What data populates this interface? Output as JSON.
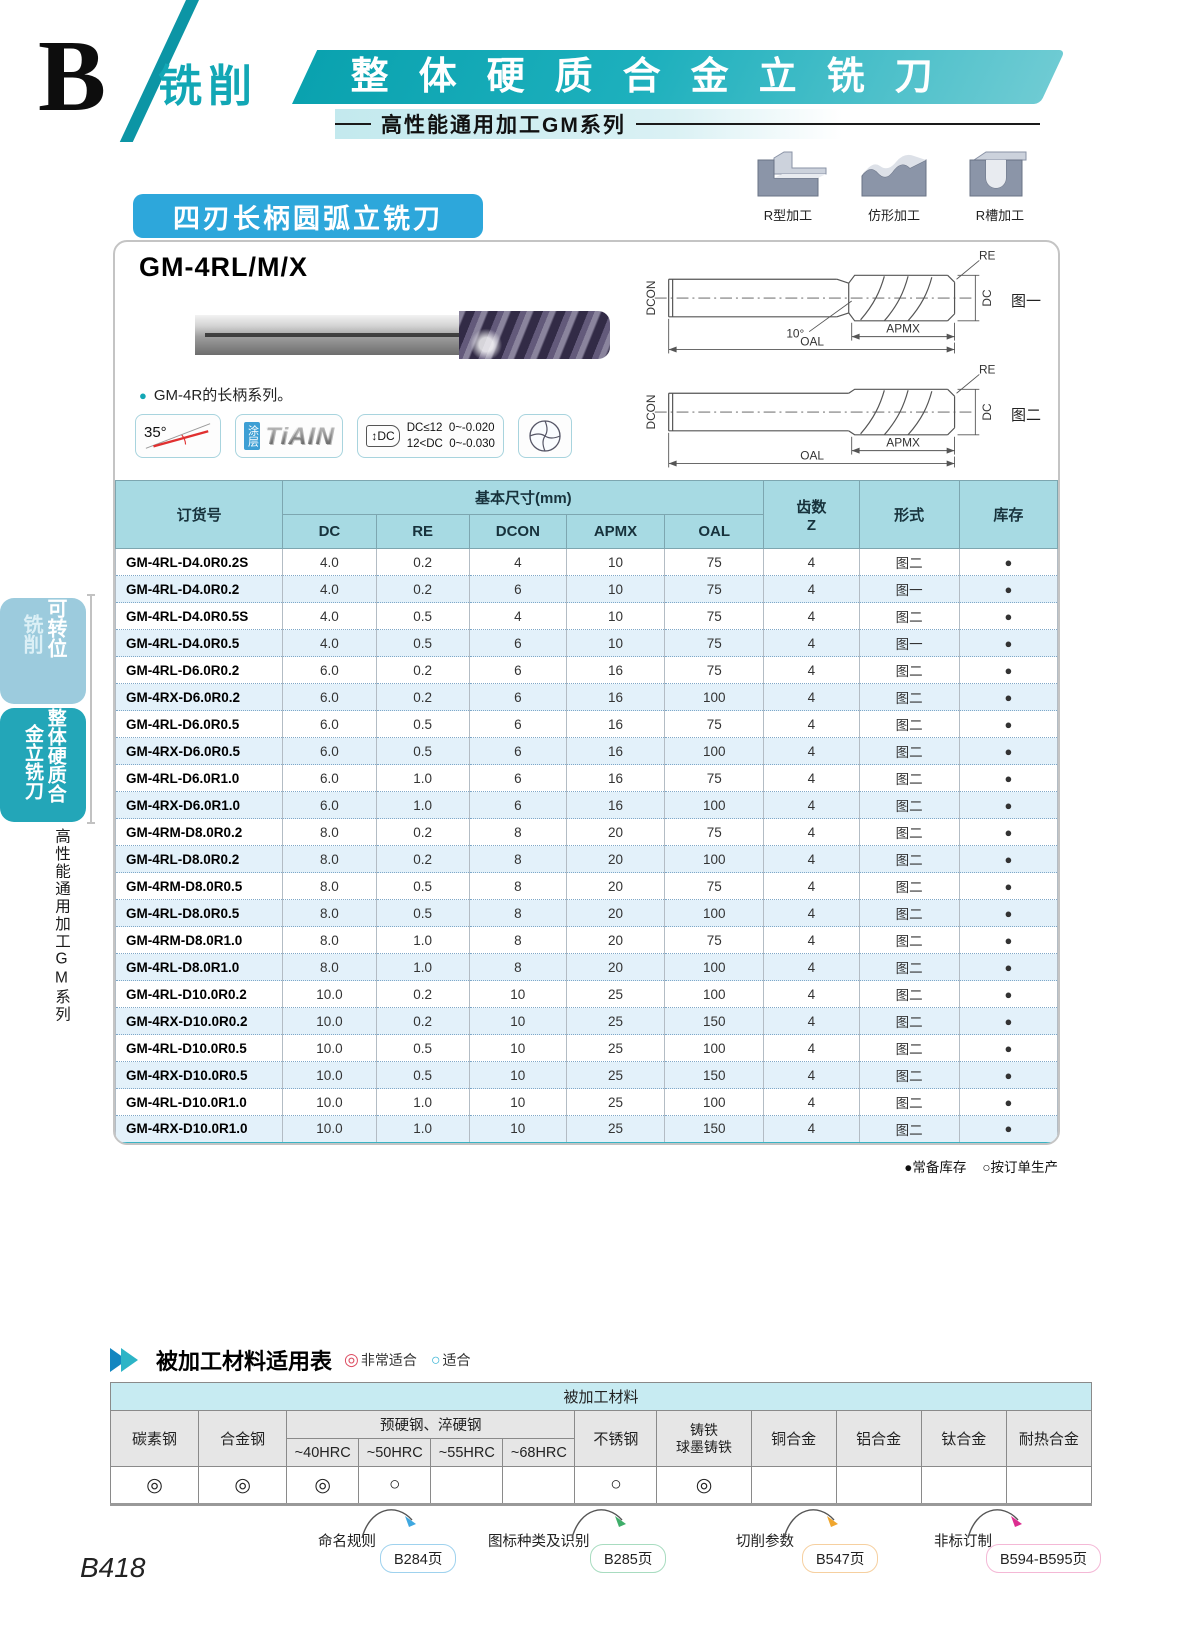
{
  "theme": {
    "accent_teal": "#12a7b5",
    "accent_blue": "#2da7db",
    "table_header_bg": "#a7dae3",
    "row_alt_bg": "#e3f1fa",
    "excellent_color": "#dc4b60",
    "good_color": "#35b3d4"
  },
  "header": {
    "section_letter": "B",
    "category": "铣削",
    "banner_title": "整体硬质合金立铣刀",
    "series_subtitle": "高性能通用加工GM系列"
  },
  "machining_icons": [
    {
      "label": "R型加工"
    },
    {
      "label": "仿形加工"
    },
    {
      "label": "R槽加工"
    }
  ],
  "sidebar": {
    "tab1_col1": "可转位",
    "tab1_col2": "铣削",
    "tab2_col1": "整体硬质合",
    "tab2_col2": "金立铣刀",
    "series_vertical": "高性能通用加工GM系列"
  },
  "product": {
    "section_title": "四刃长柄圆弧立铣刀",
    "model": "GM-4RL/M/X",
    "note": "GM-4R的长柄系列。",
    "features": {
      "helix_angle": "35°",
      "coating_tab": "涂层",
      "coating_name": "TiAIN",
      "dc_symbol": "↕DC",
      "tol_line1": "DC≤12  0~-0.020",
      "tol_line2": "12<DC  0~-0.030"
    }
  },
  "figures": {
    "fig1": {
      "caption": "图一",
      "dcon": "DCON",
      "oal": "OAL",
      "apmx": "APMX",
      "re": "RE",
      "dc": "DC",
      "angle": "10°"
    },
    "fig2": {
      "caption": "图二",
      "dcon": "DCON",
      "oal": "OAL",
      "apmx": "APMX",
      "re": "RE",
      "dc": "DC"
    }
  },
  "spec_table": {
    "col_order_no": "订货号",
    "col_basic_dims": "基本尺寸(mm)",
    "dim_headers": [
      "DC",
      "RE",
      "DCON",
      "APMX",
      "OAL"
    ],
    "col_teeth_line1": "齿数",
    "col_teeth_line2": "Z",
    "col_form": "形式",
    "col_stock": "库存",
    "rows": [
      [
        "GM-4RL-D4.0R0.2S",
        "4.0",
        "0.2",
        "4",
        "10",
        "75",
        "4",
        "图二",
        "●"
      ],
      [
        "GM-4RL-D4.0R0.2",
        "4.0",
        "0.2",
        "6",
        "10",
        "75",
        "4",
        "图一",
        "●"
      ],
      [
        "GM-4RL-D4.0R0.5S",
        "4.0",
        "0.5",
        "4",
        "10",
        "75",
        "4",
        "图二",
        "●"
      ],
      [
        "GM-4RL-D4.0R0.5",
        "4.0",
        "0.5",
        "6",
        "10",
        "75",
        "4",
        "图一",
        "●"
      ],
      [
        "GM-4RL-D6.0R0.2",
        "6.0",
        "0.2",
        "6",
        "16",
        "75",
        "4",
        "图二",
        "●"
      ],
      [
        "GM-4RX-D6.0R0.2",
        "6.0",
        "0.2",
        "6",
        "16",
        "100",
        "4",
        "图二",
        "●"
      ],
      [
        "GM-4RL-D6.0R0.5",
        "6.0",
        "0.5",
        "6",
        "16",
        "75",
        "4",
        "图二",
        "●"
      ],
      [
        "GM-4RX-D6.0R0.5",
        "6.0",
        "0.5",
        "6",
        "16",
        "100",
        "4",
        "图二",
        "●"
      ],
      [
        "GM-4RL-D6.0R1.0",
        "6.0",
        "1.0",
        "6",
        "16",
        "75",
        "4",
        "图二",
        "●"
      ],
      [
        "GM-4RX-D6.0R1.0",
        "6.0",
        "1.0",
        "6",
        "16",
        "100",
        "4",
        "图二",
        "●"
      ],
      [
        "GM-4RM-D8.0R0.2",
        "8.0",
        "0.2",
        "8",
        "20",
        "75",
        "4",
        "图二",
        "●"
      ],
      [
        "GM-4RL-D8.0R0.2",
        "8.0",
        "0.2",
        "8",
        "20",
        "100",
        "4",
        "图二",
        "●"
      ],
      [
        "GM-4RM-D8.0R0.5",
        "8.0",
        "0.5",
        "8",
        "20",
        "75",
        "4",
        "图二",
        "●"
      ],
      [
        "GM-4RL-D8.0R0.5",
        "8.0",
        "0.5",
        "8",
        "20",
        "100",
        "4",
        "图二",
        "●"
      ],
      [
        "GM-4RM-D8.0R1.0",
        "8.0",
        "1.0",
        "8",
        "20",
        "75",
        "4",
        "图二",
        "●"
      ],
      [
        "GM-4RL-D8.0R1.0",
        "8.0",
        "1.0",
        "8",
        "20",
        "100",
        "4",
        "图二",
        "●"
      ],
      [
        "GM-4RL-D10.0R0.2",
        "10.0",
        "0.2",
        "10",
        "25",
        "100",
        "4",
        "图二",
        "●"
      ],
      [
        "GM-4RX-D10.0R0.2",
        "10.0",
        "0.2",
        "10",
        "25",
        "150",
        "4",
        "图二",
        "●"
      ],
      [
        "GM-4RL-D10.0R0.5",
        "10.0",
        "0.5",
        "10",
        "25",
        "100",
        "4",
        "图二",
        "●"
      ],
      [
        "GM-4RX-D10.0R0.5",
        "10.0",
        "0.5",
        "10",
        "25",
        "150",
        "4",
        "图二",
        "●"
      ],
      [
        "GM-4RL-D10.0R1.0",
        "10.0",
        "1.0",
        "10",
        "25",
        "100",
        "4",
        "图二",
        "●"
      ],
      [
        "GM-4RX-D10.0R1.0",
        "10.0",
        "1.0",
        "10",
        "25",
        "150",
        "4",
        "图二",
        "●"
      ]
    ],
    "stock_legend_in_stock": "●常备库存",
    "stock_legend_on_order": "○按订单生产"
  },
  "material_table": {
    "title": "被加工材料适用表",
    "legend": [
      {
        "symbol": "◎",
        "label": "非常适合"
      },
      {
        "symbol": "○",
        "label": "适合"
      }
    ],
    "group_header": "被加工材料",
    "col_carbon_steel": "碳素钢",
    "col_alloy_steel": "合金钢",
    "hardened_steel_group": "预硬钢、淬硬钢",
    "hrc_columns": [
      "~40HRC",
      "~50HRC",
      "~55HRC",
      "~68HRC"
    ],
    "col_stainless": "不锈钢",
    "col_cast_iron_line1": "铸铁",
    "col_cast_iron_line2": "球墨铸铁",
    "col_copper": "铜合金",
    "col_aluminum": "铝合金",
    "col_titanium": "钛合金",
    "col_heat_resistant": "耐热合金",
    "ratings": [
      "◎",
      "◎",
      "◎",
      "○",
      "",
      "",
      "○",
      "◎",
      "",
      "",
      "",
      ""
    ]
  },
  "footer": {
    "links": [
      {
        "label": "命名规则",
        "page": "B284页",
        "accent": "#3fa8e0",
        "pill_border": "#9fd2ee"
      },
      {
        "label": "图标种类及识别",
        "page": "B285页",
        "accent": "#3fae6a",
        "pill_border": "#a8dcc0"
      },
      {
        "label": "切削参数",
        "page": "B547页",
        "accent": "#f0a62e",
        "pill_border": "#f6d0a0"
      },
      {
        "label": "非标订制",
        "page": "B594-B595页",
        "accent": "#dc2e90",
        "pill_border": "#f4b8d6"
      }
    ],
    "page_number": "B418"
  }
}
